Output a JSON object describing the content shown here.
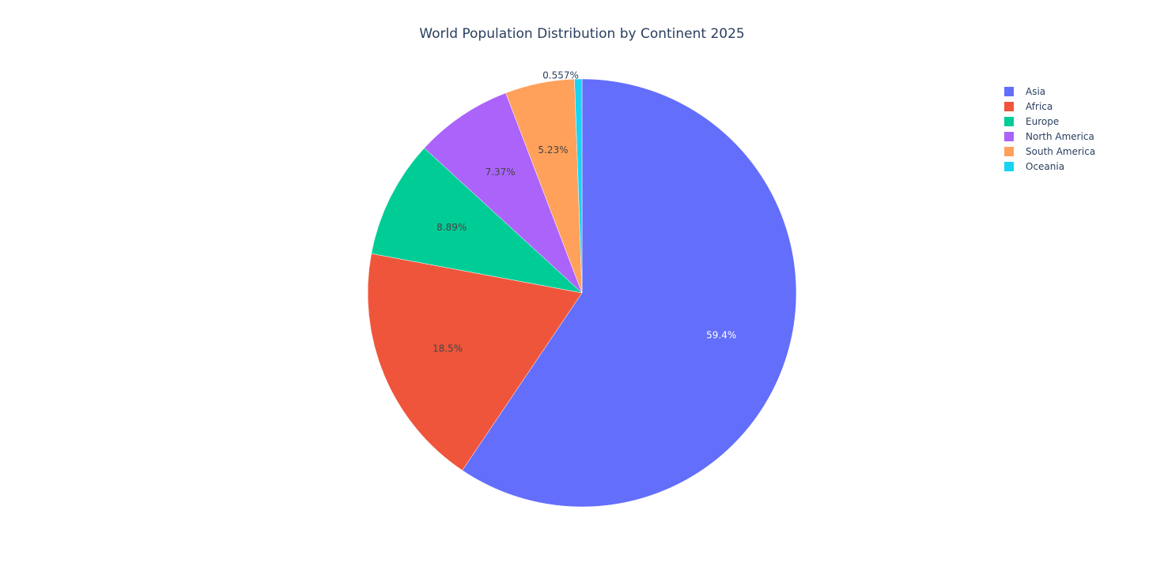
{
  "chart_data": {
    "type": "pie",
    "title": "World Population Distribution by Continent 2025",
    "categories": [
      "Asia",
      "Africa",
      "Europe",
      "North America",
      "South America",
      "Oceania"
    ],
    "values": [
      59.4,
      18.5,
      8.89,
      7.37,
      5.23,
      0.557
    ],
    "labels": [
      "59.4%",
      "18.5%",
      "8.89%",
      "7.37%",
      "5.23%",
      "0.557%"
    ],
    "colors": [
      "#636efa",
      "#ef553b",
      "#00cc96",
      "#ab63fa",
      "#ffa15a",
      "#19d3f3"
    ],
    "direction": "clockwise",
    "start_angle": "12 o'clock",
    "legend_position": "top-right"
  },
  "title": "World Population Distribution by Continent 2025",
  "legend": {
    "items": [
      {
        "label": "Asia",
        "color": "#636efa"
      },
      {
        "label": "Africa",
        "color": "#ef553b"
      },
      {
        "label": "Europe",
        "color": "#00cc96"
      },
      {
        "label": "North America",
        "color": "#ab63fa"
      },
      {
        "label": "South America",
        "color": "#ffa15a"
      },
      {
        "label": "Oceania",
        "color": "#19d3f3"
      }
    ]
  }
}
